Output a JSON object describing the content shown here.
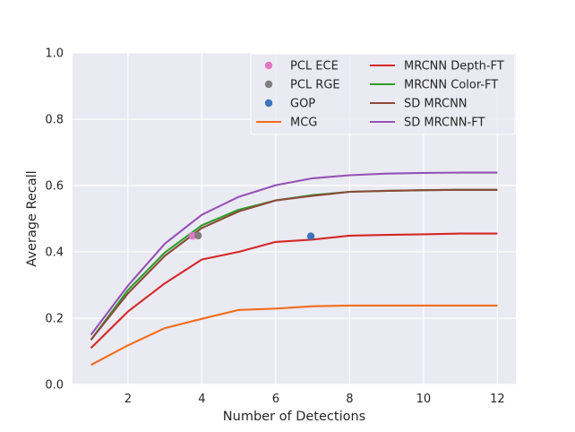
{
  "chart_data": {
    "type": "line",
    "xlabel": "Number of Detections",
    "ylabel": "Average Recall",
    "xlim": [
      0.5,
      12.5
    ],
    "ylim": [
      0.0,
      1.0
    ],
    "xticks": [
      2,
      4,
      6,
      8,
      10,
      12
    ],
    "yticks": [
      0.0,
      0.2,
      0.4,
      0.6,
      0.8,
      1.0
    ],
    "xtick_labels": [
      "2",
      "4",
      "6",
      "8",
      "10",
      "12"
    ],
    "ytick_labels": [
      "0.0",
      "0.2",
      "0.4",
      "0.6",
      "0.8",
      "1.0"
    ],
    "grid": true,
    "background": "#eaeaf2",
    "legend": {
      "placement": "top-right",
      "columns": 2
    },
    "series": [
      {
        "name": "PCL ECE",
        "kind": "point",
        "color": "#e377c2",
        "x": [
          3.75
        ],
        "y": [
          0.448
        ]
      },
      {
        "name": "PCL RGE",
        "kind": "point",
        "color": "#7f7f7f",
        "x": [
          3.9
        ],
        "y": [
          0.449
        ]
      },
      {
        "name": "GOP",
        "kind": "point",
        "color": "#3b74b9",
        "x": [
          6.95
        ],
        "y": [
          0.447
        ]
      },
      {
        "name": "MCG",
        "kind": "line",
        "color": "#f26c1d",
        "x": [
          1,
          2,
          3,
          4,
          5,
          6,
          7,
          8,
          9,
          10,
          11,
          12
        ],
        "y": [
          0.059,
          0.118,
          0.17,
          0.198,
          0.225,
          0.229,
          0.236,
          0.238,
          0.238,
          0.238,
          0.238,
          0.238
        ]
      },
      {
        "name": "MRCNN Depth-FT",
        "kind": "line",
        "color": "#d62728",
        "x": [
          1,
          2,
          3,
          4,
          5,
          6,
          7,
          8,
          9,
          10,
          11,
          12
        ],
        "y": [
          0.11,
          0.22,
          0.305,
          0.377,
          0.4,
          0.43,
          0.437,
          0.449,
          0.451,
          0.453,
          0.455,
          0.455
        ]
      },
      {
        "name": "MRCNN Color-FT",
        "kind": "line",
        "color": "#2ca02c",
        "x": [
          1,
          2,
          3,
          4,
          5,
          6,
          7,
          8,
          9,
          10,
          11,
          12
        ],
        "y": [
          0.135,
          0.285,
          0.398,
          0.48,
          0.527,
          0.555,
          0.571,
          0.581,
          0.584,
          0.586,
          0.587,
          0.587
        ]
      },
      {
        "name": "SD MRCNN",
        "kind": "line",
        "color": "#8c4a3a",
        "x": [
          1,
          2,
          3,
          4,
          5,
          6,
          7,
          8,
          9,
          10,
          11,
          12
        ],
        "y": [
          0.135,
          0.275,
          0.388,
          0.472,
          0.522,
          0.555,
          0.569,
          0.581,
          0.584,
          0.586,
          0.587,
          0.587
        ]
      },
      {
        "name": "SD MRCNN-FT",
        "kind": "line",
        "color": "#9451b5",
        "x": [
          1,
          2,
          3,
          4,
          5,
          6,
          7,
          8,
          9,
          10,
          11,
          12
        ],
        "y": [
          0.15,
          0.298,
          0.425,
          0.512,
          0.566,
          0.601,
          0.622,
          0.631,
          0.636,
          0.638,
          0.639,
          0.639
        ]
      }
    ]
  }
}
